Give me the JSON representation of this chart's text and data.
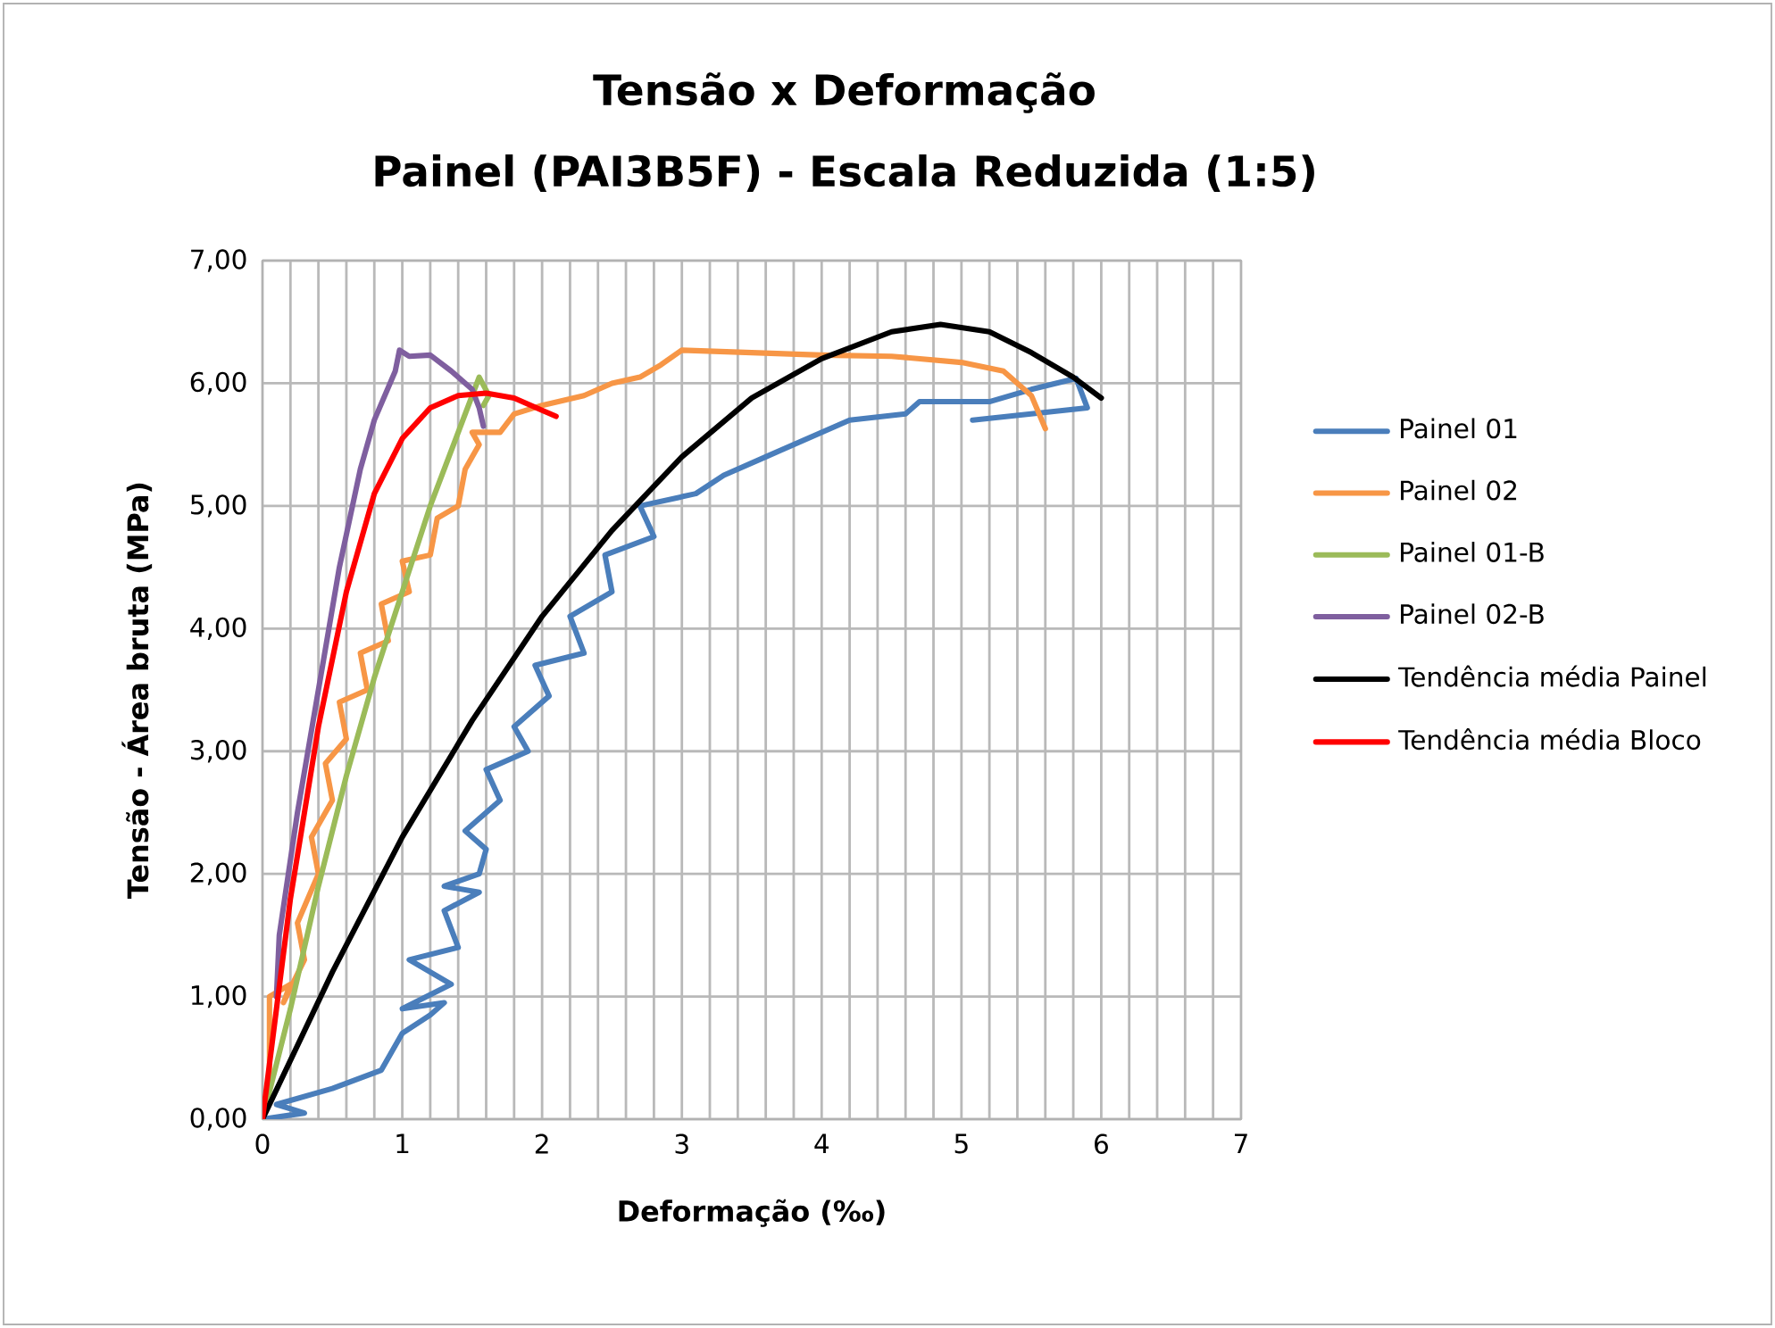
{
  "chart_data": {
    "type": "line",
    "title": "Tensão  x Deformação",
    "subtitle": "Painel (PAI3B5F) - Escala Reduzida (1:5)",
    "xlabel": "Deformação (‰)",
    "ylabel": "Tensão - Área bruta (MPa)",
    "xlim": [
      0,
      7
    ],
    "xticks": [
      0,
      1,
      2,
      3,
      4,
      5,
      6,
      7
    ],
    "ylim": [
      0,
      7
    ],
    "yticks": [
      {
        "value": 0,
        "label": "0,00"
      },
      {
        "value": 1,
        "label": "1,00"
      },
      {
        "value": 2,
        "label": "2,00"
      },
      {
        "value": 3,
        "label": "3,00"
      },
      {
        "value": 4,
        "label": "4,00"
      },
      {
        "value": 5,
        "label": "5,00"
      },
      {
        "value": 6,
        "label": "6,00"
      },
      {
        "value": 7,
        "label": "7,00"
      }
    ],
    "grid": true,
    "legend": "right",
    "marker": "none",
    "line_style": "solid",
    "series": [
      {
        "name": "Painel 01",
        "color": "#4a7ebb",
        "x": [
          0,
          0.3,
          0.1,
          0.5,
          0.85,
          1.0,
          1.2,
          1.3,
          1.0,
          1.35,
          1.05,
          1.4,
          1.3,
          1.55,
          1.3,
          1.55,
          1.6,
          1.45,
          1.7,
          1.6,
          1.9,
          1.8,
          2.05,
          1.95,
          2.3,
          2.2,
          2.5,
          2.45,
          2.8,
          2.7,
          3.1,
          3.3,
          3.6,
          3.9,
          4.2,
          4.6,
          4.7,
          5.2,
          5.5,
          5.82,
          5.9,
          5.08
        ],
        "values": [
          0,
          0.05,
          0.12,
          0.25,
          0.4,
          0.7,
          0.85,
          0.95,
          0.9,
          1.1,
          1.3,
          1.4,
          1.7,
          1.85,
          1.9,
          2.0,
          2.2,
          2.35,
          2.6,
          2.85,
          3.0,
          3.2,
          3.45,
          3.7,
          3.8,
          4.1,
          4.3,
          4.6,
          4.75,
          5.0,
          5.1,
          5.25,
          5.4,
          5.55,
          5.7,
          5.75,
          5.85,
          5.85,
          5.95,
          6.04,
          5.8,
          5.7
        ]
      },
      {
        "name": "Painel 02",
        "color": "#f79646",
        "x": [
          0,
          0.05,
          0.05,
          0.2,
          0.15,
          0.3,
          0.25,
          0.4,
          0.35,
          0.5,
          0.45,
          0.6,
          0.55,
          0.75,
          0.7,
          0.9,
          0.85,
          1.05,
          1.0,
          1.2,
          1.25,
          1.4,
          1.45,
          1.55,
          1.5,
          1.7,
          1.8,
          2.0,
          2.3,
          2.5,
          2.7,
          2.85,
          3.0,
          3.5,
          4.0,
          4.5,
          5.0,
          5.3,
          5.5,
          5.6
        ],
        "values": [
          0,
          0.3,
          1.0,
          1.1,
          0.95,
          1.3,
          1.6,
          2.0,
          2.3,
          2.6,
          2.9,
          3.1,
          3.4,
          3.5,
          3.8,
          3.9,
          4.2,
          4.3,
          4.55,
          4.6,
          4.9,
          5.0,
          5.3,
          5.5,
          5.6,
          5.6,
          5.75,
          5.82,
          5.9,
          6.0,
          6.05,
          6.15,
          6.27,
          6.25,
          6.23,
          6.22,
          6.17,
          6.1,
          5.9,
          5.63
        ]
      },
      {
        "name": "Painel 01-B",
        "color": "#9bbb59",
        "x": [
          0,
          0.2,
          0.4,
          0.6,
          0.8,
          1.0,
          1.2,
          1.4,
          1.55,
          1.62,
          1.58
        ],
        "values": [
          0,
          0.9,
          1.9,
          2.8,
          3.6,
          4.3,
          5.0,
          5.6,
          6.05,
          5.9,
          5.82
        ]
      },
      {
        "name": "Painel 02-B",
        "color": "#7f5f9f",
        "x": [
          0.1,
          0.12,
          0.25,
          0.4,
          0.55,
          0.7,
          0.8,
          0.95,
          0.98,
          1.05,
          1.2,
          1.35,
          1.5,
          1.55,
          1.58
        ],
        "values": [
          1.0,
          1.5,
          2.5,
          3.5,
          4.5,
          5.3,
          5.7,
          6.1,
          6.27,
          6.22,
          6.23,
          6.1,
          5.95,
          5.8,
          5.65
        ]
      },
      {
        "name": "Tendência média Painel",
        "color": "#000000",
        "x": [
          0,
          0.5,
          1,
          1.5,
          2,
          2.5,
          3,
          3.5,
          4,
          4.5,
          4.85,
          5.2,
          5.5,
          5.8,
          6.0
        ],
        "values": [
          0,
          1.2,
          2.3,
          3.25,
          4.1,
          4.8,
          5.4,
          5.88,
          6.2,
          6.42,
          6.48,
          6.42,
          6.25,
          6.05,
          5.88
        ]
      },
      {
        "name": "Tendência média Bloco",
        "color": "#ff0000",
        "x": [
          0,
          0.1,
          0.2,
          0.4,
          0.6,
          0.8,
          1.0,
          1.2,
          1.4,
          1.6,
          1.8,
          2.0,
          2.1
        ],
        "values": [
          0,
          0.9,
          1.8,
          3.2,
          4.3,
          5.1,
          5.55,
          5.8,
          5.9,
          5.92,
          5.88,
          5.78,
          5.73
        ]
      }
    ]
  }
}
